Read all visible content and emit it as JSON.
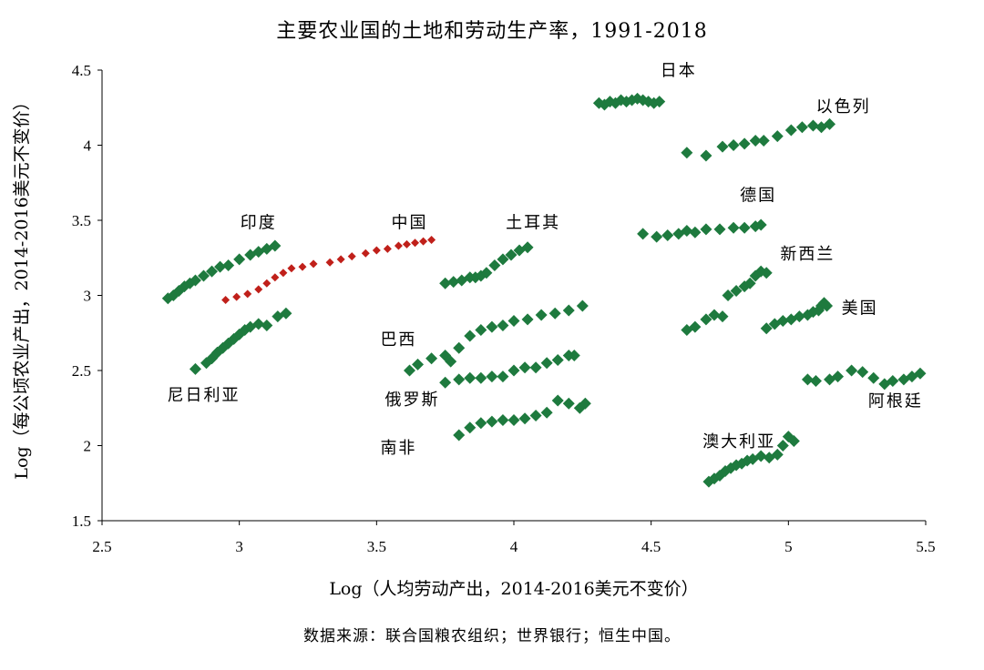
{
  "chart_data": {
    "type": "scatter",
    "title": "主要农业国的土地和劳动生产率，1991-2018",
    "xlabel": "Log（人均劳动产出，2014-2016美元不变价）",
    "ylabel": "Log（每公顷农业产出，2014-2016美元不变价）",
    "source": "数据来源：联合国粮农组织；世界银行；恒生中国。",
    "xlim": [
      2.5,
      5.5
    ],
    "ylim": [
      1.5,
      4.5
    ],
    "xticks": [
      "2.5",
      "3",
      "3.5",
      "4",
      "4.5",
      "5",
      "5.5"
    ],
    "yticks": [
      "1.5",
      "2",
      "2.5",
      "3",
      "3.5",
      "4",
      "4.5"
    ],
    "grid": false,
    "colors": {
      "default": "#1e7a3e",
      "highlight": "#c0201a"
    },
    "series": [
      {
        "name": "印度",
        "color": "#1e7a3e",
        "x": [
          2.74,
          2.76,
          2.78,
          2.8,
          2.82,
          2.84,
          2.87,
          2.9,
          2.93,
          2.96,
          3.0,
          3.04,
          3.07,
          3.1,
          3.13
        ],
        "y": [
          2.98,
          3.0,
          3.03,
          3.06,
          3.08,
          3.1,
          3.13,
          3.16,
          3.19,
          3.2,
          3.24,
          3.27,
          3.29,
          3.31,
          3.33
        ]
      },
      {
        "name": "中国",
        "color": "#c0201a",
        "x": [
          2.95,
          2.99,
          3.03,
          3.07,
          3.1,
          3.13,
          3.16,
          3.19,
          3.23,
          3.27,
          3.33,
          3.37,
          3.41,
          3.46,
          3.5,
          3.54,
          3.58,
          3.61,
          3.64,
          3.67,
          3.7
        ],
        "y": [
          2.97,
          2.99,
          3.01,
          3.04,
          3.08,
          3.12,
          3.15,
          3.18,
          3.19,
          3.21,
          3.22,
          3.24,
          3.26,
          3.28,
          3.3,
          3.31,
          3.33,
          3.34,
          3.35,
          3.36,
          3.37
        ]
      },
      {
        "name": "尼日利亚",
        "color": "#1e7a3e",
        "x": [
          2.84,
          2.88,
          2.9,
          2.92,
          2.94,
          2.96,
          2.98,
          3.0,
          3.02,
          3.04,
          3.07,
          3.1,
          3.14,
          3.17
        ],
        "y": [
          2.51,
          2.55,
          2.58,
          2.62,
          2.65,
          2.68,
          2.71,
          2.74,
          2.77,
          2.79,
          2.81,
          2.8,
          2.86,
          2.88
        ]
      },
      {
        "name": "土耳其",
        "color": "#1e7a3e",
        "x": [
          3.75,
          3.78,
          3.81,
          3.84,
          3.86,
          3.88,
          3.9,
          3.93,
          3.96,
          3.99,
          4.02,
          4.05
        ],
        "y": [
          3.08,
          3.09,
          3.1,
          3.12,
          3.12,
          3.13,
          3.15,
          3.2,
          3.24,
          3.27,
          3.3,
          3.32
        ]
      },
      {
        "name": "巴西",
        "color": "#1e7a3e",
        "x": [
          3.62,
          3.65,
          3.7,
          3.75,
          3.77,
          3.8,
          3.84,
          3.88,
          3.92,
          3.96,
          4.0,
          4.05,
          4.1,
          4.15,
          4.2,
          4.25
        ],
        "y": [
          2.5,
          2.54,
          2.58,
          2.6,
          2.56,
          2.65,
          2.73,
          2.77,
          2.79,
          2.8,
          2.83,
          2.84,
          2.87,
          2.88,
          2.9,
          2.93
        ]
      },
      {
        "name": "俄罗斯",
        "color": "#1e7a3e",
        "x": [
          3.75,
          3.8,
          3.84,
          3.88,
          3.92,
          3.96,
          4.0,
          4.04,
          4.08,
          4.12,
          4.16,
          4.2,
          4.22
        ],
        "y": [
          2.42,
          2.44,
          2.45,
          2.45,
          2.46,
          2.46,
          2.5,
          2.52,
          2.52,
          2.55,
          2.57,
          2.6,
          2.6
        ]
      },
      {
        "name": "南非",
        "color": "#1e7a3e",
        "x": [
          3.8,
          3.84,
          3.88,
          3.92,
          3.96,
          4.0,
          4.04,
          4.08,
          4.12,
          4.16,
          4.2,
          4.24,
          4.26
        ],
        "y": [
          2.07,
          2.12,
          2.15,
          2.16,
          2.17,
          2.17,
          2.18,
          2.2,
          2.22,
          2.3,
          2.28,
          2.25,
          2.28
        ]
      },
      {
        "name": "日本",
        "color": "#1e7a3e",
        "x": [
          4.31,
          4.33,
          4.35,
          4.37,
          4.39,
          4.41,
          4.43,
          4.45,
          4.47,
          4.49,
          4.51,
          4.53
        ],
        "y": [
          4.28,
          4.27,
          4.29,
          4.28,
          4.3,
          4.29,
          4.3,
          4.31,
          4.3,
          4.29,
          4.28,
          4.29
        ]
      },
      {
        "name": "以色列",
        "color": "#1e7a3e",
        "x": [
          4.63,
          4.7,
          4.76,
          4.8,
          4.84,
          4.88,
          4.91,
          4.96,
          5.01,
          5.05,
          5.09,
          5.12,
          5.15
        ],
        "y": [
          3.95,
          3.93,
          3.99,
          4.0,
          4.01,
          4.03,
          4.03,
          4.06,
          4.1,
          4.12,
          4.13,
          4.12,
          4.14
        ]
      },
      {
        "name": "德国",
        "color": "#1e7a3e",
        "x": [
          4.47,
          4.52,
          4.56,
          4.6,
          4.63,
          4.66,
          4.7,
          4.75,
          4.8,
          4.84,
          4.88,
          4.9
        ],
        "y": [
          3.41,
          3.39,
          3.4,
          3.41,
          3.43,
          3.42,
          3.44,
          3.44,
          3.45,
          3.45,
          3.46,
          3.47
        ]
      },
      {
        "name": "新西兰",
        "color": "#1e7a3e",
        "x": [
          4.63,
          4.66,
          4.7,
          4.73,
          4.76,
          4.78,
          4.81,
          4.84,
          4.86,
          4.88,
          4.9,
          4.92
        ],
        "y": [
          2.77,
          2.79,
          2.84,
          2.87,
          2.86,
          3.0,
          3.03,
          3.06,
          3.08,
          3.13,
          3.16,
          3.15
        ]
      },
      {
        "name": "美国",
        "color": "#1e7a3e",
        "x": [
          4.92,
          4.95,
          4.98,
          5.01,
          5.04,
          5.07,
          5.09,
          5.11,
          5.12,
          5.13,
          5.14
        ],
        "y": [
          2.78,
          2.81,
          2.83,
          2.84,
          2.86,
          2.87,
          2.89,
          2.9,
          2.93,
          2.95,
          2.93
        ]
      },
      {
        "name": "阿根廷",
        "color": "#1e7a3e",
        "x": [
          5.07,
          5.1,
          5.15,
          5.18,
          5.23,
          5.27,
          5.31,
          5.35,
          5.38,
          5.42,
          5.45,
          5.48
        ],
        "y": [
          2.44,
          2.43,
          2.44,
          2.46,
          2.5,
          2.49,
          2.45,
          2.41,
          2.43,
          2.44,
          2.46,
          2.48
        ]
      },
      {
        "name": "澳大利亚",
        "color": "#1e7a3e",
        "x": [
          4.71,
          4.73,
          4.75,
          4.77,
          4.79,
          4.81,
          4.83,
          4.85,
          4.87,
          4.9,
          4.93,
          4.96,
          4.98,
          5.0,
          5.02
        ],
        "y": [
          1.76,
          1.78,
          1.8,
          1.83,
          1.85,
          1.87,
          1.88,
          1.9,
          1.91,
          1.93,
          1.92,
          1.94,
          2.0,
          2.06,
          2.03
        ]
      }
    ],
    "point_labels": [
      {
        "text": "印度",
        "x": 3.07,
        "y": 3.45
      },
      {
        "text": "中国",
        "x": 3.62,
        "y": 3.45
      },
      {
        "text": "土耳其",
        "x": 4.07,
        "y": 3.45
      },
      {
        "text": "尼日利亚",
        "x": 2.87,
        "y": 2.3
      },
      {
        "text": "巴西",
        "x": 3.58,
        "y": 2.67
      },
      {
        "text": "俄罗斯",
        "x": 3.63,
        "y": 2.27
      },
      {
        "text": "南非",
        "x": 3.58,
        "y": 1.95
      },
      {
        "text": "日本",
        "x": 4.6,
        "y": 4.46
      },
      {
        "text": "以色列",
        "x": 5.2,
        "y": 4.22
      },
      {
        "text": "德国",
        "x": 4.89,
        "y": 3.63
      },
      {
        "text": "新西兰",
        "x": 5.07,
        "y": 3.24
      },
      {
        "text": "美国",
        "x": 5.26,
        "y": 2.88
      },
      {
        "text": "阿根廷",
        "x": 5.39,
        "y": 2.26
      },
      {
        "text": "澳大利亚",
        "x": 4.82,
        "y": 1.99
      }
    ]
  }
}
